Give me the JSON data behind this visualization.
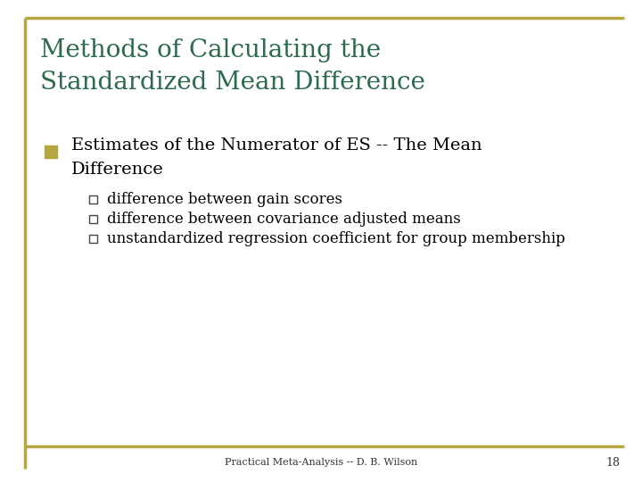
{
  "title_line1": "Methods of Calculating the",
  "title_line2": "Standardized Mean Difference",
  "title_color": "#2d6b4e",
  "background_color": "#ffffff",
  "border_color": "#b5a642",
  "bullet_color": "#b5a642",
  "sub_bullets": [
    "difference between gain scores",
    "difference between covariance adjusted means",
    "unstandardized regression coefficient for group membership"
  ],
  "footer_text": "Practical Meta-Analysis -- D. B. Wilson",
  "page_number": "18",
  "text_color": "#000000",
  "footer_color": "#333333",
  "title_fontsize": 20,
  "bullet_fontsize": 14,
  "sub_bullet_fontsize": 12
}
